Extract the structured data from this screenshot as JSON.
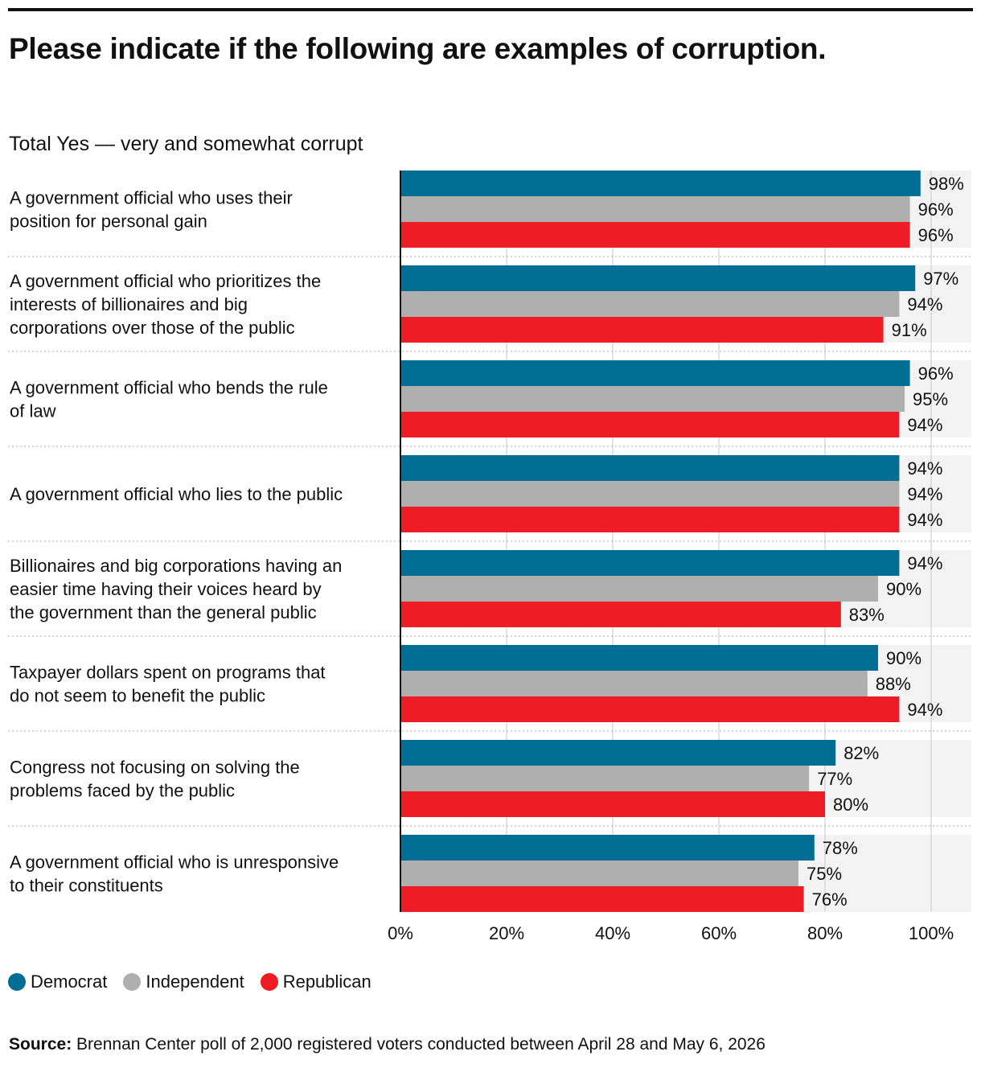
{
  "title": "Please indicate if the following are examples of corruption.",
  "subtitle": "Total Yes — very and somewhat corrupt",
  "source": {
    "label": "Source:",
    "text": "Brennan Center poll of 2,000 registered voters conducted between April 28 and May 6, 2026"
  },
  "chart_data": {
    "type": "bar",
    "orientation": "horizontal",
    "value_suffix": "%",
    "xlim": [
      0,
      100
    ],
    "ticks": [
      "0%",
      "20%",
      "40%",
      "60%",
      "80%",
      "100%"
    ],
    "tick_values": [
      0,
      20,
      40,
      60,
      80,
      100
    ],
    "grid": true,
    "legend_position": "bottom-left",
    "categories": [
      [
        "A government official who uses their",
        "position for personal gain"
      ],
      [
        "A government official who prioritizes the",
        "interests of billionaires and big",
        "corporations over those of the public"
      ],
      [
        "A government official who bends the rule",
        "of law"
      ],
      [
        "A government official who lies to the public"
      ],
      [
        "Billionaires and big corporations having an",
        "easier time having their voices heard by",
        "the government than the general public"
      ],
      [
        "Taxpayer dollars spent on programs that",
        "do not seem to benefit the public"
      ],
      [
        "Congress not focusing on solving the",
        "problems faced by the public"
      ],
      [
        "A government official who is unresponsive",
        "to their constituents"
      ]
    ],
    "series": [
      {
        "name": "Democrat",
        "color": "#006d95",
        "values": [
          98,
          97,
          96,
          94,
          94,
          90,
          82,
          78
        ]
      },
      {
        "name": "Independent",
        "color": "#afafaf",
        "values": [
          96,
          94,
          95,
          94,
          90,
          88,
          77,
          75
        ]
      },
      {
        "name": "Republican",
        "color": "#ee1c25",
        "values": [
          96,
          91,
          94,
          94,
          83,
          94,
          80,
          76
        ]
      }
    ]
  }
}
